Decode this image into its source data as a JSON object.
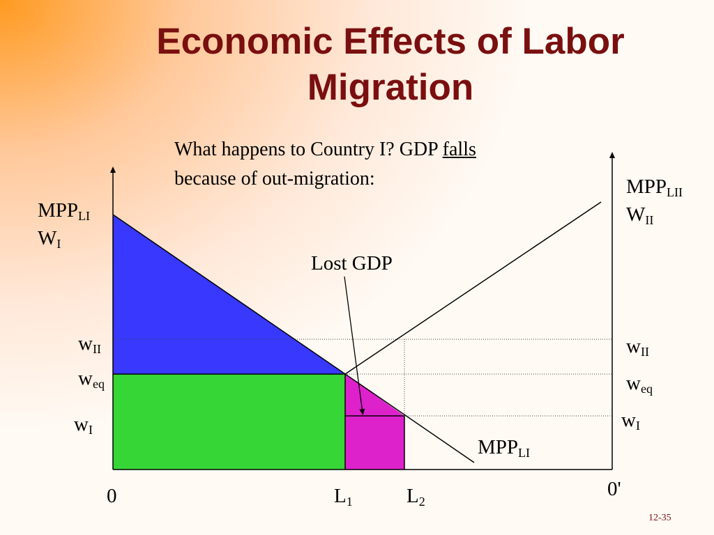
{
  "slide": {
    "title_line1": "Economic Effects of Labor",
    "title_line2": "Migration",
    "subtitle_line1_pre": "What happens to Country I?  GDP ",
    "subtitle_line1_emph": "falls",
    "subtitle_line2": "because of out-migration:",
    "slide_number": "12-35"
  },
  "labels": {
    "mpp_main": "MPP",
    "mpp_sub_li": "LI",
    "mpp_sub_lii": "LII",
    "w_main_upper": "W",
    "w_main_lower": "w",
    "sub_i": "I",
    "sub_ii": "II",
    "sub_eq": "eq",
    "l_main": "L",
    "l_sub_1": "1",
    "l_sub_2": "2",
    "origin_left": "0",
    "origin_right": "0'",
    "lost_gdp": "Lost GDP"
  },
  "colors": {
    "wage_bill_fill": "#36d636",
    "rent_fill": "#3838ff",
    "lost_gdp_fill": "#dd22cc",
    "title": "#7a0f0f",
    "gradient_orange": "#ff9a20"
  }
}
